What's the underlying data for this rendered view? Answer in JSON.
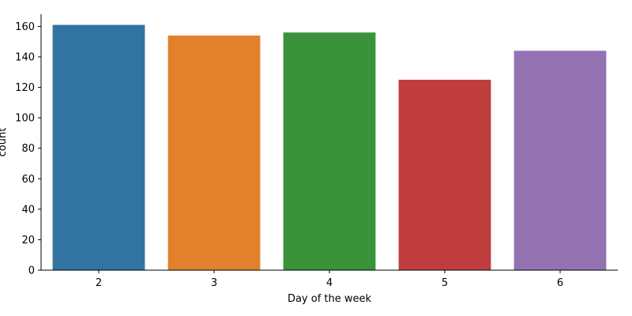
{
  "chart_data": {
    "type": "bar",
    "categories": [
      "2",
      "3",
      "4",
      "5",
      "6"
    ],
    "values": [
      161,
      154,
      156,
      125,
      144
    ],
    "colors": [
      "#3274a1",
      "#e1812c",
      "#3a923a",
      "#c03d3e",
      "#9372b2"
    ],
    "title": "",
    "xlabel": "Day of the week",
    "ylabel": "count",
    "ylim": [
      0,
      168
    ],
    "yticks": [
      0,
      20,
      40,
      60,
      80,
      100,
      120,
      140,
      160
    ],
    "grid": false,
    "legend": "none"
  }
}
